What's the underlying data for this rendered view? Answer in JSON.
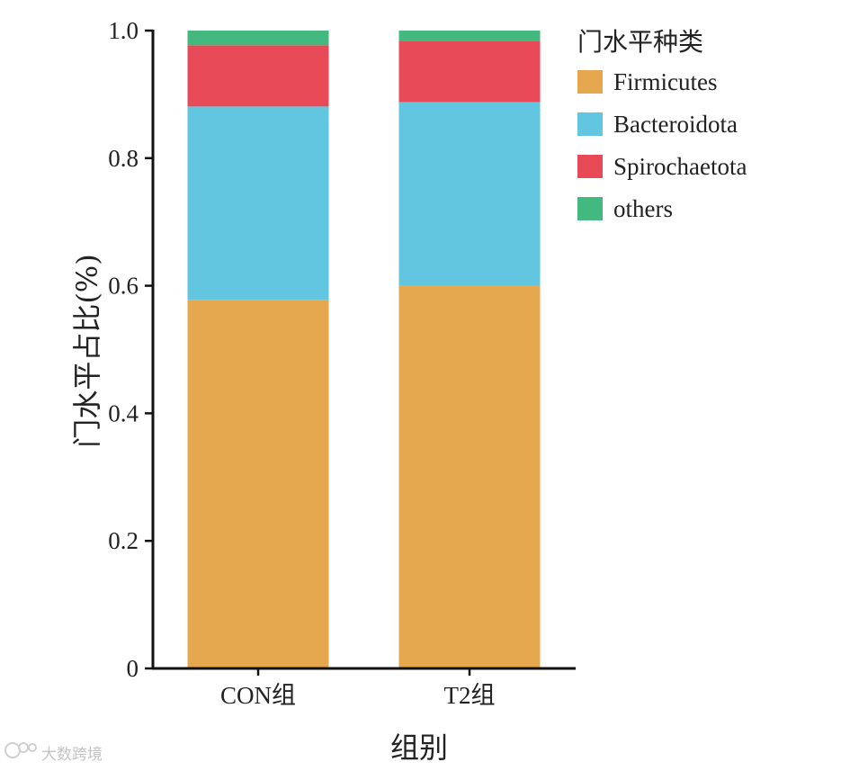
{
  "chart_data": {
    "type": "bar",
    "stacked": true,
    "categories": [
      "CON组",
      "T2组"
    ],
    "series": [
      {
        "name": "Firmicutes",
        "color": "#E5A84E",
        "values": [
          0.578,
          0.6
        ]
      },
      {
        "name": "Bacteroidota",
        "color": "#62C6E0",
        "values": [
          0.303,
          0.288
        ]
      },
      {
        "name": "Spirochaetota",
        "color": "#E84A58",
        "values": [
          0.096,
          0.096
        ]
      },
      {
        "name": "others",
        "color": "#43B97F",
        "values": [
          0.023,
          0.016
        ]
      }
    ],
    "title": "",
    "xlabel": "组别",
    "ylabel": "门水平占比(%)",
    "ylim": [
      0,
      1.0
    ],
    "yticks": [
      0,
      0.2,
      0.4,
      0.6,
      0.8,
      1.0
    ],
    "ytick_labels": [
      "0",
      "0.2",
      "0.4",
      "0.6",
      "0.8",
      "1.0"
    ],
    "grid": false,
    "legend": {
      "title": "门水平种类",
      "placement": "top-right"
    }
  },
  "watermark": {
    "icon": "kiwi-logo-icon",
    "text": "大数跨境"
  }
}
